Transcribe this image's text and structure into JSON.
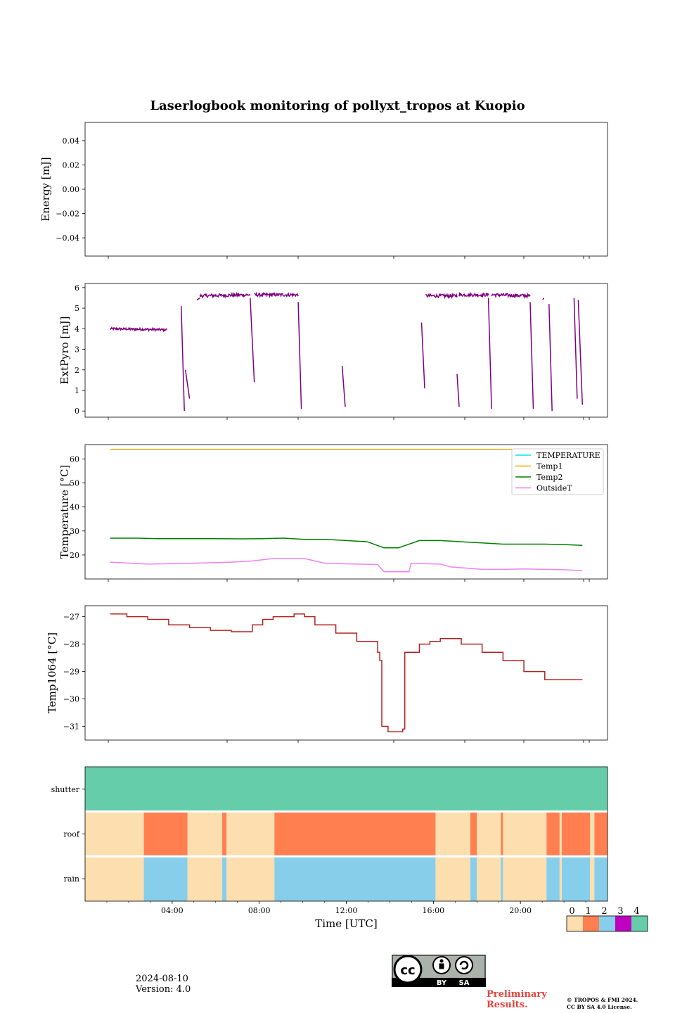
{
  "title": "Laserlogbook monitoring of pollyxt_tropos at Kuopio",
  "footer": {
    "date": "2024-08-10",
    "version": "Version: 4.0",
    "preliminary_line1": "Preliminary",
    "preliminary_line2": "Results.",
    "copyright_line1": "© TROPOS & FMI 2024.",
    "copyright_line2": "CC BY SA 4.0 License.",
    "license_badge": {
      "icon": "cc-by-sa-icon",
      "labels": [
        "BY",
        "SA"
      ]
    }
  },
  "chart_data": [
    {
      "id": "energy",
      "type": "line",
      "ylabel": "Energy [mJ]",
      "ylim": [
        -0.055,
        0.055
      ],
      "yticks": [
        0.04,
        0.02,
        0.0,
        -0.02,
        -0.04
      ],
      "ytick_labels": [
        "0.04",
        "0.02",
        "0.00",
        "−0.02",
        "−0.04"
      ],
      "xlim": [
        0,
        25
      ],
      "series": []
    },
    {
      "id": "extpyro",
      "type": "line",
      "ylabel": "ExtPyro [mJ]",
      "ylim": [
        -0.3,
        6.2
      ],
      "yticks": [
        0,
        1,
        2,
        3,
        4,
        5,
        6
      ],
      "ytick_labels": [
        "0",
        "1",
        "2",
        "3",
        "4",
        "5",
        "6"
      ],
      "xlim": [
        0,
        25
      ],
      "series": [
        {
          "color": "#800080",
          "segments": [
            {
              "x": [
                1.2,
                3.9
              ],
              "y": [
                4.0,
                3.95
              ],
              "noise": 0.06
            },
            {
              "x": [
                4.6,
                4.75
              ],
              "y": [
                5.1,
                0.0
              ]
            },
            {
              "x": [
                4.8,
                5.0
              ],
              "y": [
                2.0,
                0.6
              ]
            },
            {
              "x": [
                5.35,
                5.5
              ],
              "y": [
                5.4,
                5.5
              ]
            },
            {
              "x": [
                5.5,
                7.9
              ],
              "y": [
                5.6,
                5.65
              ],
              "noise": 0.08
            },
            {
              "x": [
                7.9,
                8.1
              ],
              "y": [
                5.5,
                1.4
              ]
            },
            {
              "x": [
                8.1,
                10.2
              ],
              "y": [
                5.65,
                5.65
              ],
              "noise": 0.08
            },
            {
              "x": [
                10.2,
                10.35
              ],
              "y": [
                5.3,
                0.1
              ]
            },
            {
              "x": [
                12.3,
                12.45
              ],
              "y": [
                2.2,
                0.2
              ]
            },
            {
              "x": [
                16.1,
                16.25
              ],
              "y": [
                4.3,
                1.1
              ]
            },
            {
              "x": [
                16.3,
                17.8
              ],
              "y": [
                5.6,
                5.6
              ],
              "noise": 0.08
            },
            {
              "x": [
                17.8,
                17.9
              ],
              "y": [
                1.8,
                0.2
              ]
            },
            {
              "x": [
                17.9,
                19.3
              ],
              "y": [
                5.65,
                5.65
              ],
              "noise": 0.08
            },
            {
              "x": [
                19.3,
                19.45
              ],
              "y": [
                5.5,
                0.1
              ]
            },
            {
              "x": [
                19.45,
                21.3
              ],
              "y": [
                5.65,
                5.6
              ],
              "noise": 0.08
            },
            {
              "x": [
                21.3,
                21.45
              ],
              "y": [
                5.3,
                0.1
              ]
            },
            {
              "x": [
                21.9,
                21.95
              ],
              "y": [
                5.4,
                5.5
              ]
            },
            {
              "x": [
                22.2,
                22.35
              ],
              "y": [
                5.2,
                0.0
              ]
            },
            {
              "x": [
                23.4,
                23.55
              ],
              "y": [
                5.5,
                0.6
              ]
            },
            {
              "x": [
                23.6,
                23.8
              ],
              "y": [
                5.4,
                0.3
              ]
            }
          ]
        }
      ]
    },
    {
      "id": "temperature",
      "type": "line",
      "ylabel": "Temperature [°C]",
      "ylim": [
        10,
        66
      ],
      "yticks": [
        20,
        30,
        40,
        50,
        60
      ],
      "ytick_labels": [
        "20",
        "30",
        "40",
        "50",
        "60"
      ],
      "xlim": [
        0,
        25
      ],
      "legend": {
        "position": "top-right",
        "entries": [
          "TEMPERATURE",
          "Temp1",
          "Temp2",
          "OutsideT"
        ]
      },
      "series": [
        {
          "name": "TEMPERATURE",
          "color": "#00e5e5",
          "x": [],
          "y": []
        },
        {
          "name": "Temp1",
          "color": "#ffa500",
          "x": [
            1.2,
            23.8
          ],
          "y": [
            64,
            64
          ]
        },
        {
          "name": "Temp2",
          "color": "#008000",
          "x": [
            1.2,
            2.5,
            3.5,
            4.5,
            5.5,
            6.5,
            7.5,
            8.5,
            9.5,
            10.5,
            11.5,
            12.5,
            13.5,
            14.3,
            15.0,
            16.0,
            17.0,
            18.0,
            19.0,
            20.0,
            21.0,
            22.0,
            23.0,
            23.8
          ],
          "y": [
            27,
            27,
            26.8,
            26.8,
            26.8,
            26.8,
            26.7,
            26.8,
            27,
            26.5,
            26.5,
            26,
            25.5,
            23,
            23,
            26,
            26,
            25.5,
            25,
            24.5,
            24.5,
            24.5,
            24.3,
            24
          ]
        },
        {
          "name": "OutsideT",
          "color": "#ee82ee",
          "x": [
            1.2,
            3.0,
            5.0,
            7.0,
            8.0,
            9.0,
            10.5,
            11.5,
            13.0,
            14.0,
            14.3,
            15.5,
            15.6,
            17.0,
            17.5,
            19.0,
            20.0,
            21.0,
            22.0,
            23.0,
            23.8
          ],
          "y": [
            17,
            16.2,
            16.5,
            17,
            17.5,
            18.5,
            18.5,
            16.5,
            16.2,
            16,
            13,
            13,
            16.5,
            16.2,
            15,
            14,
            14,
            14.2,
            14,
            13.8,
            13.5
          ]
        }
      ]
    },
    {
      "id": "temp1064",
      "type": "line",
      "ylabel": "Temp1064 [°C]",
      "ylim": [
        -31.5,
        -26.6
      ],
      "yticks": [
        -27,
        -28,
        -29,
        -30,
        -31
      ],
      "ytick_labels": [
        "−27",
        "−28",
        "−29",
        "−30",
        "−31"
      ],
      "xlim": [
        0,
        25
      ],
      "series": [
        {
          "color": "#b22222",
          "x": [
            1.2,
            2.0,
            3.0,
            4.0,
            5.0,
            6.0,
            7.0,
            8.0,
            8.5,
            9.0,
            10.0,
            10.5,
            11.0,
            12.0,
            13.0,
            14.0,
            14.1,
            14.2,
            14.5,
            15.0,
            15.2,
            15.3,
            16.0,
            16.5,
            17.0,
            17.5,
            18.0,
            19.0,
            20.0,
            21.0,
            22.0,
            23.0,
            23.8
          ],
          "y": [
            -26.9,
            -27.0,
            -27.1,
            -27.3,
            -27.4,
            -27.5,
            -27.55,
            -27.3,
            -27.1,
            -27.0,
            -26.9,
            -27.0,
            -27.3,
            -27.6,
            -27.9,
            -28.3,
            -28.6,
            -31.0,
            -31.2,
            -31.2,
            -31.1,
            -28.3,
            -28.0,
            -27.9,
            -27.8,
            -27.8,
            -28.0,
            -28.3,
            -28.6,
            -29.0,
            -29.3,
            -29.3,
            -29.3
          ]
        }
      ]
    },
    {
      "id": "status",
      "type": "heatmap",
      "xlabel": "Time [UTC]",
      "xlim": [
        0,
        24
      ],
      "xticks": [
        4,
        8,
        12,
        16,
        20
      ],
      "xtick_labels": [
        "04:00",
        "08:00",
        "12:00",
        "16:00",
        "20:00"
      ],
      "rows": [
        "shutter",
        "roof",
        "rain"
      ],
      "colorbar": {
        "labels": [
          "0",
          "1",
          "2",
          "3",
          "4"
        ],
        "colors": [
          "#fddeaf",
          "#ff7f50",
          "#87ceeb",
          "#c000c0",
          "#66cdaa"
        ]
      },
      "row_segments": {
        "shutter": [
          {
            "from": 0,
            "to": 24,
            "value": 4
          }
        ],
        "roof": [
          {
            "from": 0,
            "to": 2.7,
            "value": 0
          },
          {
            "from": 2.7,
            "to": 4.7,
            "value": 1
          },
          {
            "from": 4.7,
            "to": 6.3,
            "value": 0
          },
          {
            "from": 6.3,
            "to": 6.5,
            "value": 1
          },
          {
            "from": 6.5,
            "to": 8.7,
            "value": 0
          },
          {
            "from": 8.7,
            "to": 16.1,
            "value": 1
          },
          {
            "from": 16.1,
            "to": 17.7,
            "value": 0
          },
          {
            "from": 17.7,
            "to": 18.0,
            "value": 1
          },
          {
            "from": 18.0,
            "to": 19.1,
            "value": 0
          },
          {
            "from": 19.1,
            "to": 19.2,
            "value": 1
          },
          {
            "from": 19.2,
            "to": 21.2,
            "value": 0
          },
          {
            "from": 21.2,
            "to": 21.8,
            "value": 1
          },
          {
            "from": 21.8,
            "to": 21.9,
            "value": 0
          },
          {
            "from": 21.9,
            "to": 23.2,
            "value": 1
          },
          {
            "from": 23.2,
            "to": 23.4,
            "value": 0
          },
          {
            "from": 23.4,
            "to": 24,
            "value": 1
          }
        ],
        "rain": [
          {
            "from": 0,
            "to": 2.7,
            "value": 0
          },
          {
            "from": 2.7,
            "to": 4.7,
            "value": 2
          },
          {
            "from": 4.7,
            "to": 6.3,
            "value": 0
          },
          {
            "from": 6.3,
            "to": 6.5,
            "value": 2
          },
          {
            "from": 6.5,
            "to": 8.7,
            "value": 0
          },
          {
            "from": 8.7,
            "to": 16.1,
            "value": 2
          },
          {
            "from": 16.1,
            "to": 17.7,
            "value": 0
          },
          {
            "from": 17.7,
            "to": 18.0,
            "value": 2
          },
          {
            "from": 18.0,
            "to": 19.1,
            "value": 0
          },
          {
            "from": 19.1,
            "to": 19.2,
            "value": 2
          },
          {
            "from": 19.2,
            "to": 21.2,
            "value": 0
          },
          {
            "from": 21.2,
            "to": 21.8,
            "value": 2
          },
          {
            "from": 21.8,
            "to": 21.9,
            "value": 0
          },
          {
            "from": 21.9,
            "to": 23.2,
            "value": 2
          },
          {
            "from": 23.2,
            "to": 23.4,
            "value": 0
          },
          {
            "from": 23.4,
            "to": 24,
            "value": 2
          }
        ]
      }
    }
  ]
}
